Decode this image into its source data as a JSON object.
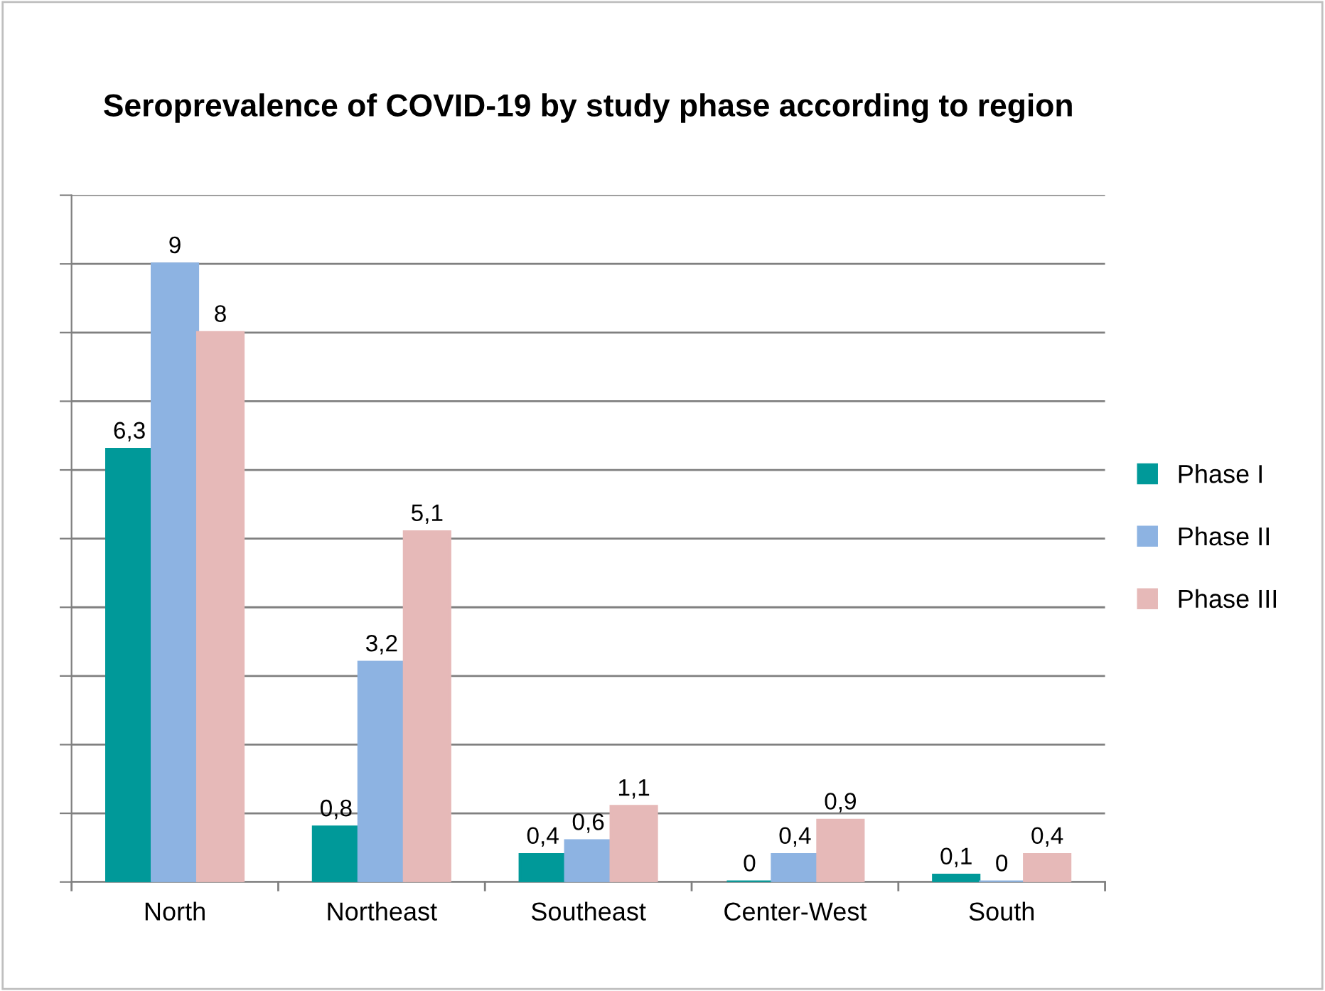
{
  "chart_data": {
    "type": "bar",
    "title": "Seroprevalence of COVID-19 by study phase according to region",
    "categories": [
      "North",
      "Northeast",
      "Southeast",
      "Center-West",
      "South"
    ],
    "series": [
      {
        "name": "Phase I",
        "color": "#009999",
        "values": [
          6.3,
          0.8,
          0.4,
          0,
          0.1
        ],
        "value_labels": [
          "6,3",
          "0,8",
          "0,4",
          "0",
          "0,1"
        ]
      },
      {
        "name": "Phase II",
        "color": "#8db3e2",
        "values": [
          9,
          3.2,
          0.6,
          0.4,
          0
        ],
        "value_labels": [
          "9",
          "3,2",
          "0,6",
          "0,4",
          "0"
        ]
      },
      {
        "name": "Phase III",
        "color": "#e6b9b8",
        "values": [
          8,
          5.1,
          1.1,
          0.9,
          0.4
        ],
        "value_labels": [
          "8",
          "5,1",
          "1,1",
          "0,9",
          "0,4"
        ]
      }
    ],
    "ylim": [
      0,
      10
    ],
    "yticks": [
      {
        "value": 0,
        "label": null
      },
      {
        "value": 1,
        "label": null
      },
      {
        "value": 2,
        "label": null
      },
      {
        "value": 3,
        "label": null
      },
      {
        "value": 4,
        "label": null
      },
      {
        "value": 5,
        "label": null
      },
      {
        "value": 6,
        "label": null
      },
      {
        "value": 7,
        "label": null
      },
      {
        "value": 8,
        "label": null
      },
      {
        "value": 9,
        "label": null
      },
      {
        "value": 10,
        "label": null
      }
    ],
    "tick_labels": "x",
    "grid": "y",
    "legend": "right"
  }
}
